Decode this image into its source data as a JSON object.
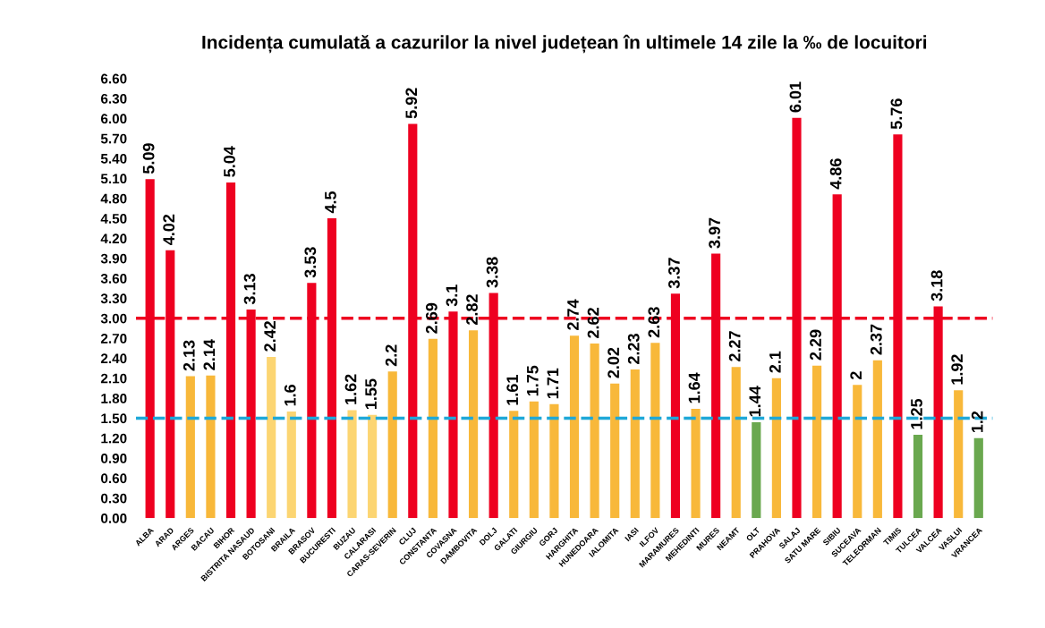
{
  "chart_data": {
    "type": "bar",
    "title": "Incidența cumulată a cazurilor la nivel județean în ultimele 14 zile la ‰ de locuitori",
    "categories": [
      "ALBA",
      "ARAD",
      "ARGES",
      "BACAU",
      "BIHOR",
      "BISTRITA NASAUD",
      "BOTOSANI",
      "BRAILA",
      "BRASOV",
      "BUCURESTI",
      "BUZAU",
      "CALARASI",
      "CARAS-SEVERIN",
      "CLUJ",
      "CONSTANTA",
      "COVASNA",
      "DAMBOVITA",
      "DOLJ",
      "GALATI",
      "GIURGIU",
      "GORJ",
      "HARGHITA",
      "HUNEDOARA",
      "IALOMITA",
      "IASI",
      "ILFOV",
      "MARAMURES",
      "MEHEDINTI",
      "MURES",
      "NEAMT",
      "OLT",
      "PRAHOVA",
      "SALAJ",
      "SATU MARE",
      "SIBIU",
      "SUCEAVA",
      "TELEORMAN",
      "TIMIS",
      "TULCEA",
      "VALCEA",
      "VASLUI",
      "VRANCEA"
    ],
    "values": [
      5.09,
      4.02,
      2.13,
      2.14,
      5.04,
      3.13,
      2.42,
      1.6,
      3.53,
      4.5,
      1.62,
      1.55,
      2.2,
      5.92,
      2.69,
      3.1,
      2.82,
      3.38,
      1.61,
      1.75,
      1.71,
      2.74,
      2.62,
      2.02,
      2.23,
      2.63,
      3.37,
      1.64,
      3.97,
      2.27,
      1.44,
      2.1,
      6.01,
      2.29,
      4.86,
      2,
      2.37,
      5.76,
      1.25,
      3.18,
      1.92,
      1.2
    ],
    "colors": [
      "#ee0020",
      "#ee0020",
      "#f8b83a",
      "#f8b83a",
      "#ee0020",
      "#ee0020",
      "#fcd572",
      "#fcd572",
      "#ee0020",
      "#ee0020",
      "#fcd572",
      "#fcd572",
      "#f8b83a",
      "#ee0020",
      "#f8b83a",
      "#ee0020",
      "#f8b83a",
      "#ee0020",
      "#f8b83a",
      "#f8b83a",
      "#f8b83a",
      "#f8b83a",
      "#f8b83a",
      "#f8b83a",
      "#f8b83a",
      "#f8b83a",
      "#ee0020",
      "#f8b83a",
      "#ee0020",
      "#f8b83a",
      "#6aa84f",
      "#f8b83a",
      "#ee0020",
      "#f8b83a",
      "#ee0020",
      "#f8b83a",
      "#f8b83a",
      "#ee0020",
      "#6aa84f",
      "#ee0020",
      "#f8b83a",
      "#6aa84f"
    ],
    "ylim": [
      0,
      6.6
    ],
    "yticks": [
      {
        "value": 0,
        "label": "0.00"
      },
      {
        "value": 0.3,
        "label": "0.30"
      },
      {
        "value": 0.6,
        "label": "0.60"
      },
      {
        "value": 0.9,
        "label": "0.90"
      },
      {
        "value": 1.2,
        "label": "1.20"
      },
      {
        "value": 1.5,
        "label": "1.50"
      },
      {
        "value": 1.8,
        "label": "1.80"
      },
      {
        "value": 2.1,
        "label": "2.10"
      },
      {
        "value": 2.4,
        "label": "2.40"
      },
      {
        "value": 2.7,
        "label": "2.70"
      },
      {
        "value": 3.0,
        "label": "3.00"
      },
      {
        "value": 3.3,
        "label": "3.30"
      },
      {
        "value": 3.6,
        "label": "3.60"
      },
      {
        "value": 3.9,
        "label": "3.90"
      },
      {
        "value": 4.2,
        "label": "4.20"
      },
      {
        "value": 4.5,
        "label": "4.50"
      },
      {
        "value": 4.8,
        "label": "4.80"
      },
      {
        "value": 5.1,
        "label": "5.10"
      },
      {
        "value": 5.4,
        "label": "5.40"
      },
      {
        "value": 5.7,
        "label": "5.70"
      },
      {
        "value": 6.0,
        "label": "6.00"
      },
      {
        "value": 6.3,
        "label": "6.30"
      },
      {
        "value": 6.6,
        "label": "6.60"
      }
    ],
    "ref_lines": [
      {
        "axis": "y",
        "value": 3,
        "color": "#ee0020",
        "line_style": "dashed"
      },
      {
        "axis": "y",
        "value": 1.5,
        "color": "#1fa8d8",
        "line_style": "dashed"
      }
    ],
    "data_labels": true,
    "grid": false,
    "legend": false
  }
}
